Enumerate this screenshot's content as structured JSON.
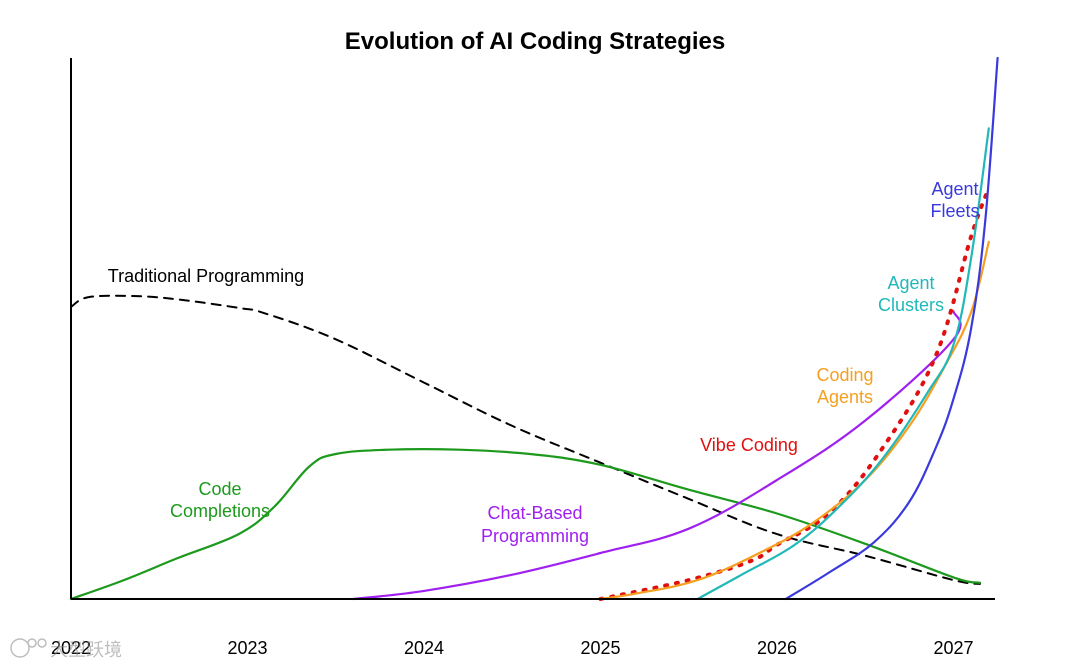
{
  "chart_data": {
    "type": "line",
    "title": "Evolution of AI Coding Strategies",
    "xlabel": "",
    "ylabel": "",
    "x_ticks": [
      "2022",
      "2023",
      "2024",
      "2025",
      "2026",
      "2027"
    ],
    "xlim": [
      2022,
      2027.2
    ],
    "ylim": [
      0,
      100
    ],
    "grid": false,
    "legend": "none (series labeled inline)",
    "series": [
      {
        "name": "Traditional Programming",
        "label_lines": [
          "Traditional Programming"
        ],
        "color": "#000000",
        "style": "dashed",
        "points": [
          [
            2022.0,
            54
          ],
          [
            2022.1,
            55.8
          ],
          [
            2022.35,
            56
          ],
          [
            2022.6,
            55.4
          ],
          [
            2022.95,
            53.8
          ],
          [
            2023.1,
            52.8
          ],
          [
            2023.5,
            48
          ],
          [
            2024.0,
            40
          ],
          [
            2024.5,
            32
          ],
          [
            2025.0,
            25.2
          ],
          [
            2025.5,
            18.5
          ],
          [
            2026.0,
            12
          ],
          [
            2026.5,
            8
          ],
          [
            2027.0,
            3.5
          ],
          [
            2027.15,
            2.8
          ]
        ]
      },
      {
        "name": "Code Completions",
        "label_lines": [
          "Code",
          "Completions"
        ],
        "color": "#1d9a1d",
        "style": "solid",
        "points": [
          [
            2022.0,
            0
          ],
          [
            2022.3,
            3.5
          ],
          [
            2022.6,
            7.5
          ],
          [
            2022.95,
            12
          ],
          [
            2023.15,
            17
          ],
          [
            2023.35,
            24.5
          ],
          [
            2023.5,
            26.8
          ],
          [
            2023.8,
            27.6
          ],
          [
            2024.2,
            27.6
          ],
          [
            2024.6,
            26.8
          ],
          [
            2025.0,
            24.8
          ],
          [
            2025.5,
            20.2
          ],
          [
            2026.0,
            15.8
          ],
          [
            2026.5,
            10.2
          ],
          [
            2027.0,
            4
          ],
          [
            2027.15,
            3
          ]
        ]
      },
      {
        "name": "Chat-Based Programming",
        "label_lines": [
          "Chat-Based",
          "Programming"
        ],
        "color": "#a020f0",
        "style": "solid",
        "points": [
          [
            2023.6,
            0
          ],
          [
            2024.0,
            1.5
          ],
          [
            2024.5,
            4.5
          ],
          [
            2025.0,
            8.5
          ],
          [
            2025.5,
            13
          ],
          [
            2026.0,
            22
          ],
          [
            2026.5,
            33
          ],
          [
            2027.0,
            48
          ],
          [
            2027.0,
            53.2
          ]
        ]
      },
      {
        "name": "Vibe Coding",
        "label_lines": [
          "Vibe Coding"
        ],
        "color": "#e01010",
        "style": "dotted",
        "points": [
          [
            2025.0,
            0
          ],
          [
            2025.5,
            3.5
          ],
          [
            2025.85,
            7
          ],
          [
            2026.0,
            10
          ],
          [
            2026.3,
            16
          ],
          [
            2026.6,
            28
          ],
          [
            2026.9,
            45
          ],
          [
            2027.1,
            67
          ],
          [
            2027.2,
            76
          ]
        ]
      },
      {
        "name": "Coding Agents",
        "label_lines": [
          "Coding",
          "Agents"
        ],
        "color": "#f5a020",
        "style": "solid",
        "points": [
          [
            2025.0,
            0
          ],
          [
            2025.2,
            1
          ],
          [
            2025.55,
            3.5
          ],
          [
            2025.9,
            8.5
          ],
          [
            2026.2,
            14
          ],
          [
            2026.5,
            22
          ],
          [
            2026.75,
            32
          ],
          [
            2026.95,
            43
          ],
          [
            2027.1,
            53
          ],
          [
            2027.2,
            66
          ]
        ]
      },
      {
        "name": "Agent Clusters",
        "label_lines": [
          "Agent",
          "Clusters"
        ],
        "color": "#20b8b8",
        "style": "solid",
        "points": [
          [
            2025.55,
            0
          ],
          [
            2025.8,
            4.5
          ],
          [
            2026.1,
            10
          ],
          [
            2026.35,
            17
          ],
          [
            2026.6,
            26
          ],
          [
            2026.85,
            38
          ],
          [
            2027.0,
            47
          ],
          [
            2027.1,
            63
          ],
          [
            2027.2,
            87
          ]
        ]
      },
      {
        "name": "Agent Fleets",
        "label_lines": [
          "Agent",
          "Fleets"
        ],
        "color": "#3a3adc",
        "style": "solid",
        "points": [
          [
            2026.05,
            0
          ],
          [
            2026.3,
            5
          ],
          [
            2026.55,
            10.5
          ],
          [
            2026.75,
            18
          ],
          [
            2026.9,
            28
          ],
          [
            2027.0,
            37
          ],
          [
            2027.1,
            50
          ],
          [
            2027.18,
            70
          ],
          [
            2027.25,
            100
          ]
        ]
      }
    ]
  },
  "watermark": {
    "text": "大型跃境",
    "icon": "circle-logo-icon"
  }
}
